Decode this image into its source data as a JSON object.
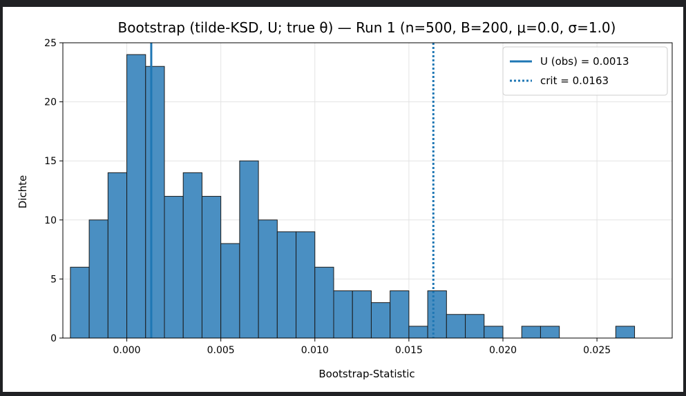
{
  "chart_data": {
    "type": "bar",
    "title": "Bootstrap (tilde-KSD, U; true θ) — Run 1  (n=500, B=200, μ=0.0, σ=1.0)",
    "xlabel": "Bootstrap-Statistic",
    "ylabel": "Dichte",
    "xlim": [
      -0.0034,
      0.029
    ],
    "ylim": [
      0,
      25
    ],
    "xticks": [
      "0.000",
      "0.005",
      "0.010",
      "0.015",
      "0.020",
      "0.025"
    ],
    "xtick_values": [
      0.0,
      0.005,
      0.01,
      0.015,
      0.02,
      0.025
    ],
    "yticks": [
      "0",
      "5",
      "10",
      "15",
      "20",
      "25"
    ],
    "ytick_values": [
      0,
      5,
      10,
      15,
      20,
      25
    ],
    "grid": true,
    "bin_edges": [
      -0.003,
      -0.002,
      -0.001,
      0.0,
      0.001,
      0.002,
      0.003,
      0.004,
      0.005,
      0.006,
      0.007,
      0.008,
      0.009,
      0.01,
      0.011,
      0.012,
      0.013,
      0.014,
      0.015,
      0.016,
      0.017,
      0.018,
      0.019,
      0.02,
      0.021,
      0.022,
      0.023,
      0.024,
      0.025,
      0.026,
      0.027
    ],
    "values": [
      6,
      10,
      14,
      24,
      23,
      12,
      14,
      12,
      8,
      15,
      10,
      9,
      9,
      6,
      4,
      4,
      3,
      4,
      1,
      4,
      2,
      2,
      1,
      0,
      1,
      1,
      0,
      0,
      0,
      1
    ],
    "bar_color": "#4a8fc2",
    "vlines": [
      {
        "label": "U (obs) = 0.0013",
        "x": 0.0013,
        "style": "solid",
        "color": "#1f77b4"
      },
      {
        "label": "crit = 0.0163",
        "x": 0.0163,
        "style": "dotted",
        "color": "#1f77b4"
      }
    ],
    "legend_position": "top-right"
  }
}
